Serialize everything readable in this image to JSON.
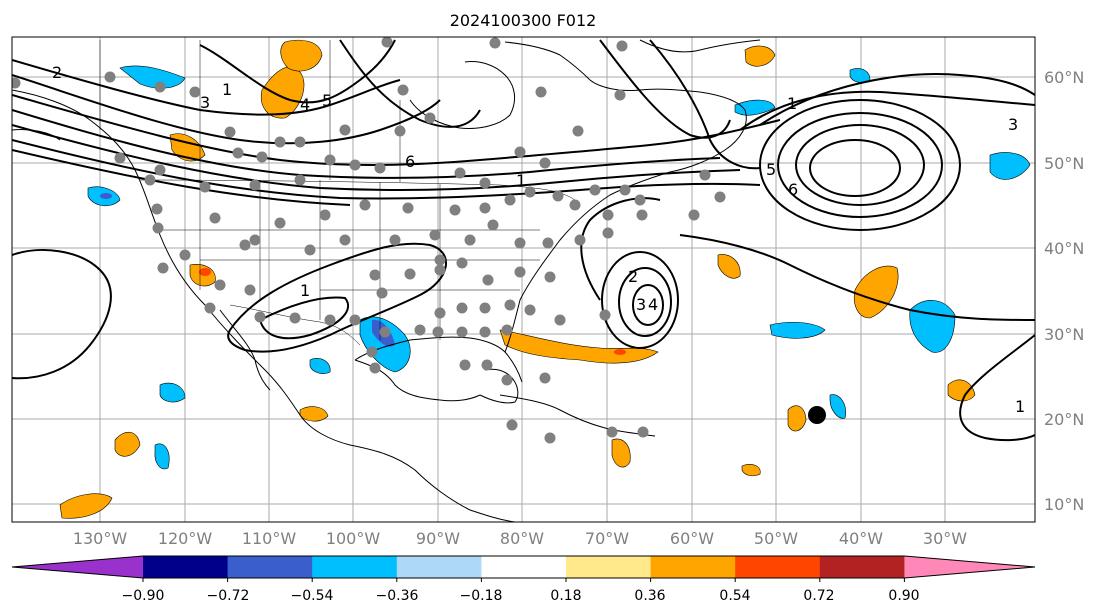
{
  "title": "2024100300 F012",
  "lat_labels": [
    "60°N",
    "50°N",
    "40°N",
    "30°N",
    "20°N",
    "10°N"
  ],
  "lon_labels": [
    "130°W",
    "120°W",
    "110°W",
    "100°W",
    "90°W",
    "80°W",
    "70°W",
    "60°W",
    "50°W",
    "40°W",
    "30°W"
  ],
  "colorbar": {
    "ticks": [
      "−0.90",
      "−0.72",
      "−0.54",
      "−0.36",
      "−0.18",
      "0.18",
      "0.36",
      "0.54",
      "0.72",
      "0.90"
    ],
    "under_color": "#9932cc",
    "colors": [
      "#9932cc",
      "#00008b",
      "#3a5fcd",
      "#00bfff",
      "#add8f6",
      "#ffffff",
      "#ffe98a",
      "#ffa500",
      "#ff4500",
      "#b22222",
      "#ff88b8"
    ],
    "over_color": "#ff88b8"
  },
  "contour_labels": [
    "1",
    "2",
    "3",
    "4",
    "5",
    "6",
    "1",
    "2",
    "3",
    "4",
    "1",
    "1",
    "6",
    "3",
    "5",
    "1"
  ],
  "colors": {
    "contour": "#000000",
    "station": "#808080",
    "grid": "#aaaaaa",
    "coast": "#000000"
  }
}
